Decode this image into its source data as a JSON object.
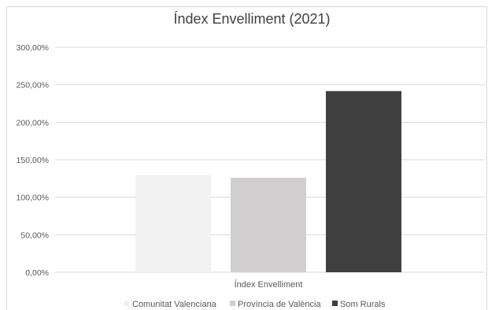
{
  "chart_data": {
    "type": "bar",
    "title": "Índex Envelliment (2021)",
    "categories": [
      "Índex Envelliment"
    ],
    "series": [
      {
        "name": "Comunitat Valenciana",
        "values": [
          129.5
        ],
        "color": "#f2f2f2"
      },
      {
        "name": "Província de València",
        "values": [
          126.0
        ],
        "color": "#d0cece"
      },
      {
        "name": "Som Rurals",
        "values": [
          241.5
        ],
        "color": "#3f3f3f"
      }
    ],
    "ylim": [
      0,
      300
    ],
    "yticks": [
      "0,00%",
      "50,00%",
      "100,00%",
      "150,00%",
      "200,00%",
      "250,00%",
      "300,00%"
    ],
    "ytick_values": [
      0,
      50,
      100,
      150,
      200,
      250,
      300
    ],
    "grid": true,
    "legend": "bottom",
    "xlabel": "",
    "ylabel": ""
  }
}
